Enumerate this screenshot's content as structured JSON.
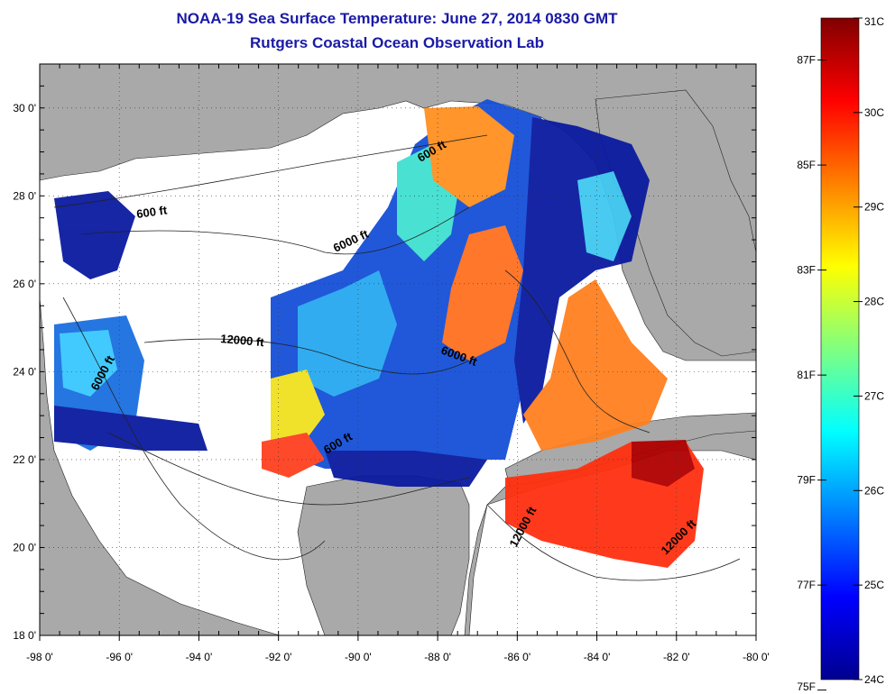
{
  "title_line1": "NOAA-19 Sea Surface Temperature:  June 27, 2014 0830 GMT",
  "title_line2": "Rutgers Coastal Ocean Observation Lab",
  "map": {
    "lon_range": [
      -98,
      -80
    ],
    "lat_range": [
      18,
      31
    ],
    "x_ticks": [
      {
        "value": -98,
        "label": "-98 0'"
      },
      {
        "value": -96,
        "label": "-96 0'"
      },
      {
        "value": -94,
        "label": "-94 0'"
      },
      {
        "value": -92,
        "label": "-92 0'"
      },
      {
        "value": -90,
        "label": "-90 0'"
      },
      {
        "value": -88,
        "label": "-88 0'"
      },
      {
        "value": -86,
        "label": "-86 0'"
      },
      {
        "value": -84,
        "label": "-84 0'"
      },
      {
        "value": -82,
        "label": "-82 0'"
      },
      {
        "value": -80,
        "label": "-80 0'"
      }
    ],
    "y_ticks": [
      {
        "value": 30,
        "label": "30 0'"
      },
      {
        "value": 28,
        "label": "28 0'"
      },
      {
        "value": 26,
        "label": "26 0'"
      },
      {
        "value": 24,
        "label": "24 0'"
      },
      {
        "value": 22,
        "label": "22 0'"
      },
      {
        "value": 20,
        "label": "20 0'"
      },
      {
        "value": 18,
        "label": "18 0'"
      }
    ],
    "grid": "dotted",
    "land_color": "#a9a9a9",
    "no_data_color": "#ffffff",
    "contour_labels": [
      {
        "text": "600 ft"
      },
      {
        "text": "600 ft"
      },
      {
        "text": "600 ft"
      },
      {
        "text": "6000 ft"
      },
      {
        "text": "6000 ft"
      },
      {
        "text": "6000 ft"
      },
      {
        "text": "12000 ft"
      },
      {
        "text": "12000 ft"
      },
      {
        "text": "12000 ft"
      }
    ]
  },
  "colorbar": {
    "celsius": [
      "31C",
      "30C",
      "29C",
      "28C",
      "27C",
      "26C",
      "25C",
      "24C"
    ],
    "fahrenheit": [
      "87F",
      "85F",
      "83F",
      "81F",
      "79F",
      "77F",
      "75F"
    ],
    "colors": [
      "#00008f",
      "#0000ff",
      "#0080ff",
      "#00ffff",
      "#80ff80",
      "#ffff00",
      "#ff8000",
      "#ff0000",
      "#800000"
    ]
  }
}
